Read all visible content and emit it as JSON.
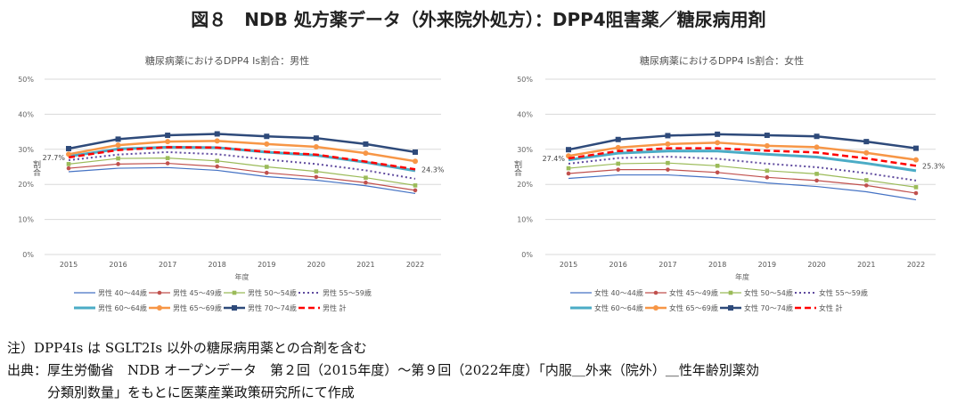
{
  "figure_title": "図８　NDB 処方薬データ（外来院外処方）：DPP4阻害薬／糖尿病用剤",
  "chart_data": [
    {
      "type": "line",
      "title": "糖尿病薬におけるDPP4 Is割合：男性",
      "xlabel": "年度",
      "ylabel": "割合",
      "x": [
        2015,
        2016,
        2017,
        2018,
        2019,
        2020,
        2021,
        2022
      ],
      "yticks": [
        "0%",
        "10%",
        "20%",
        "30%",
        "40%",
        "50%"
      ],
      "ylim": [
        0,
        50
      ],
      "grid": true,
      "legend_position": "bottom",
      "series": [
        {
          "name": "男性 40〜44歳",
          "color": "#4472c4",
          "style": "thin",
          "values": [
            23.6,
            24.6,
            24.8,
            24.0,
            22.2,
            21.2,
            19.6,
            17.4
          ]
        },
        {
          "name": "男性 45〜49歳",
          "color": "#c0504d",
          "style": "thin-circle",
          "values": [
            24.6,
            25.8,
            26.0,
            25.1,
            23.3,
            22.1,
            20.5,
            18.3
          ]
        },
        {
          "name": "男性 50〜54歳",
          "color": "#9bbb59",
          "style": "thin-square",
          "values": [
            25.8,
            27.4,
            27.5,
            26.7,
            25.0,
            23.7,
            21.9,
            19.7
          ]
        },
        {
          "name": "男性 55〜59歳",
          "color": "#5f4a9e",
          "style": "dotted",
          "values": [
            26.9,
            28.5,
            29.2,
            28.6,
            27.1,
            25.8,
            24.0,
            21.6
          ]
        },
        {
          "name": "男性 60〜64歳",
          "color": "#4bacc6",
          "style": "thick",
          "values": [
            28.0,
            30.1,
            30.6,
            30.5,
            29.2,
            28.3,
            26.3,
            23.9
          ]
        },
        {
          "name": "男性 65〜69歳",
          "color": "#f79646",
          "style": "thick-circle",
          "values": [
            28.6,
            31.2,
            32.2,
            32.4,
            31.5,
            30.7,
            28.9,
            26.6
          ]
        },
        {
          "name": "男性 70〜74歳",
          "color": "#2e4a7a",
          "style": "thick-square",
          "values": [
            30.2,
            32.9,
            34.0,
            34.4,
            33.7,
            33.2,
            31.5,
            29.2
          ]
        },
        {
          "name": "男性 計",
          "color": "#ff0000",
          "style": "dashed",
          "values": [
            27.7,
            29.8,
            30.6,
            30.5,
            29.3,
            28.5,
            26.5,
            24.3
          ]
        }
      ],
      "data_labels": {
        "first": "27.7%",
        "last": "24.3%"
      }
    },
    {
      "type": "line",
      "title": "糖尿病薬におけるDPP4 Is割合：女性",
      "xlabel": "年度",
      "ylabel": "割合",
      "x": [
        2015,
        2016,
        2017,
        2018,
        2019,
        2020,
        2021,
        2022
      ],
      "yticks": [
        "0%",
        "10%",
        "20%",
        "30%",
        "40%",
        "50%"
      ],
      "ylim": [
        0,
        50
      ],
      "grid": true,
      "legend_position": "bottom",
      "series": [
        {
          "name": "女性 40〜44歳",
          "color": "#4472c4",
          "style": "thin",
          "values": [
            21.7,
            22.7,
            22.7,
            21.9,
            20.4,
            19.4,
            17.9,
            15.6
          ]
        },
        {
          "name": "女性 45〜49歳",
          "color": "#c0504d",
          "style": "thin-circle",
          "values": [
            23.1,
            24.2,
            24.2,
            23.4,
            22.0,
            21.1,
            19.7,
            17.5
          ]
        },
        {
          "name": "女性 50〜54歳",
          "color": "#9bbb59",
          "style": "thin-square",
          "values": [
            24.6,
            25.9,
            26.1,
            25.3,
            23.9,
            23.0,
            21.2,
            19.2
          ]
        },
        {
          "name": "女性 55〜59歳",
          "color": "#5f4a9e",
          "style": "dotted",
          "values": [
            25.9,
            27.5,
            27.9,
            27.3,
            25.9,
            24.9,
            23.2,
            21.1
          ]
        },
        {
          "name": "女性 60〜64歳",
          "color": "#4bacc6",
          "style": "thick",
          "values": [
            27.0,
            28.9,
            29.5,
            29.5,
            28.6,
            27.8,
            26.0,
            23.9
          ]
        },
        {
          "name": "女性 65〜69歳",
          "color": "#f79646",
          "style": "thick-circle",
          "values": [
            28.1,
            30.5,
            31.5,
            31.9,
            31.0,
            30.6,
            29.0,
            27.0
          ]
        },
        {
          "name": "女性 70〜74歳",
          "color": "#2e4a7a",
          "style": "thick-square",
          "values": [
            29.9,
            32.8,
            33.9,
            34.3,
            34.0,
            33.7,
            32.2,
            30.3
          ]
        },
        {
          "name": "女性 計",
          "color": "#ff0000",
          "style": "dashed",
          "values": [
            27.4,
            29.5,
            30.3,
            30.3,
            29.6,
            29.1,
            27.4,
            25.3
          ]
        }
      ],
      "data_labels": {
        "first": "27.4%",
        "last": "25.3%"
      }
    }
  ],
  "notes": {
    "note": "注）DPP4Is は SGLT2Is 以外の糖尿病用薬との合剤を含む",
    "source_line1": "出典：厚生労働省　NDB オープンデータ　第２回（2015年度）〜第９回（2022年度）「内服＿外来（院外）＿性年齢別薬効",
    "source_line2": "　　　分類別数量」をもとに医薬産業政策研究所にて作成"
  }
}
